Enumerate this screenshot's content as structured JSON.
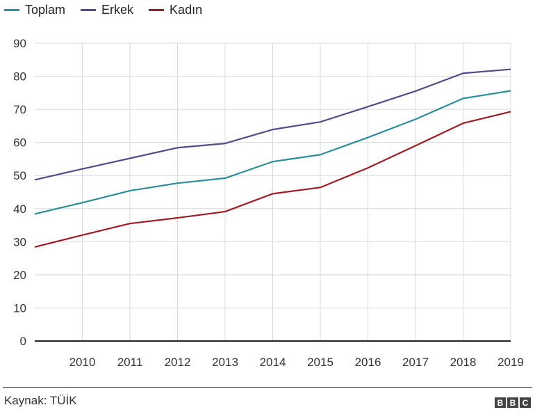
{
  "chart_data": {
    "type": "line",
    "title": "",
    "xlabel": "",
    "ylabel": "",
    "x": [
      2009,
      2010,
      2011,
      2012,
      2013,
      2014,
      2015,
      2016,
      2017,
      2018,
      2019
    ],
    "xtick_labels": [
      "2010",
      "2011",
      "2012",
      "2013",
      "2014",
      "2015",
      "2016",
      "2017",
      "2018",
      "2019"
    ],
    "ylim": [
      0,
      90
    ],
    "yticks": [
      0,
      10,
      20,
      30,
      40,
      50,
      60,
      70,
      80,
      90
    ],
    "grid": true,
    "legend_position": "top-left",
    "series": [
      {
        "name": "Toplam",
        "color": "#2b8e9a",
        "values": [
          38.4,
          41.8,
          45.4,
          47.7,
          49.2,
          54.2,
          56.3,
          61.5,
          67.0,
          73.3,
          75.6
        ]
      },
      {
        "name": "Erkek",
        "color": "#574a8a",
        "values": [
          48.7,
          52.0,
          55.2,
          58.4,
          59.7,
          63.9,
          66.2,
          70.8,
          75.5,
          80.9,
          82.1
        ]
      },
      {
        "name": "Kadın",
        "color": "#9e1c22",
        "values": [
          28.4,
          32.0,
          35.5,
          37.2,
          39.1,
          44.5,
          46.4,
          52.3,
          59.0,
          65.8,
          69.3
        ]
      }
    ]
  },
  "footer": {
    "source": "Kaynak: TÜİK",
    "logo": [
      "B",
      "B",
      "C"
    ]
  }
}
